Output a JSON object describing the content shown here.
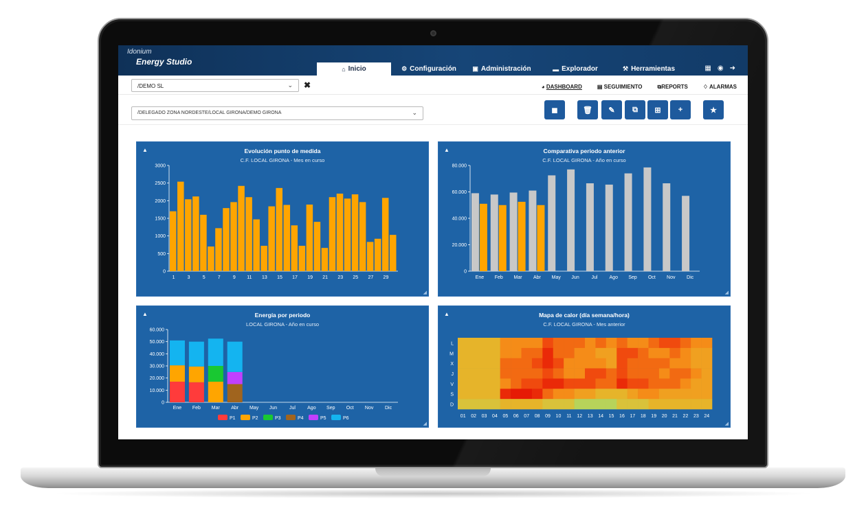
{
  "app": {
    "brand_small": "Idonium",
    "brand_main": "Energy Studio"
  },
  "nav": [
    {
      "label": "Inicio",
      "icon": "home-icon",
      "active": true
    },
    {
      "label": "Configuración",
      "icon": "gear-icon",
      "active": false
    },
    {
      "label": "Administración",
      "icon": "admin-icon",
      "active": false
    },
    {
      "label": "Explorador",
      "icon": "folder-icon",
      "active": false
    },
    {
      "label": "Herramientas",
      "icon": "wrench-icon",
      "active": false
    }
  ],
  "filters": {
    "client": "/DEMO SL",
    "location": "/DELEGADO ZONA NORDESTE/LOCAL GIRONA/DEMO GIRONA"
  },
  "subtabs": [
    {
      "label": "DASHBOARD",
      "icon": "dashboard-icon",
      "active": true
    },
    {
      "label": "SEGUIMIENTO",
      "icon": "area-chart-icon",
      "active": false
    },
    {
      "label": "REPORTS",
      "icon": "copy-icon",
      "active": false
    },
    {
      "label": "ALARMAS",
      "icon": "bell-icon",
      "active": false
    }
  ],
  "action_buttons": [
    "export-icon",
    "trash-icon",
    "edit-icon",
    "clone-icon",
    "add-box-icon",
    "plus-icon",
    "star-icon"
  ],
  "colors": {
    "panel_bg": "#1e63a6",
    "orange": "#ffa500",
    "gray": "#c8c8c8",
    "topbar": "#164577"
  },
  "chart_data": [
    {
      "type": "bar",
      "title": "Evolución punto de medida",
      "subtitle": "C.F. LOCAL GIRONA - Mes en curso",
      "x": [
        1,
        2,
        3,
        4,
        5,
        6,
        7,
        8,
        9,
        10,
        11,
        12,
        13,
        14,
        15,
        16,
        17,
        18,
        19,
        20,
        21,
        22,
        23,
        24,
        25,
        26,
        27,
        28,
        29,
        30
      ],
      "x_tick_labels": [
        "1",
        "3",
        "5",
        "7",
        "9",
        "11",
        "13",
        "15",
        "17",
        "19",
        "21",
        "23",
        "25",
        "27",
        "29"
      ],
      "values": [
        1700,
        2540,
        2040,
        2120,
        1600,
        700,
        1220,
        1790,
        1960,
        2420,
        2100,
        1470,
        720,
        1840,
        2360,
        1880,
        1300,
        720,
        1890,
        1400,
        660,
        2100,
        2200,
        2060,
        2180,
        1960,
        830,
        920,
        2080,
        1030
      ],
      "ylim": [
        0,
        3000
      ],
      "y_ticks": [
        "0",
        "500",
        "1000",
        "1500",
        "2000",
        "2500",
        "3000"
      ],
      "color": "#ffa500"
    },
    {
      "type": "bar",
      "title": "Comparativa periodo anterior",
      "subtitle": "C.F. LOCAL GIRONA - Año en curso",
      "categories": [
        "Ene",
        "Feb",
        "Mar",
        "Abr",
        "May",
        "Jun",
        "Jul",
        "Ago",
        "Sep",
        "Oct",
        "Nov",
        "Dic"
      ],
      "series": [
        {
          "values": [
            59000,
            58000,
            59500,
            61000,
            72500,
            77000,
            66500,
            65500,
            74000,
            78500,
            66500,
            57000
          ],
          "color": "#c8c8c8"
        },
        {
          "values": [
            51000,
            50000,
            52500,
            50000,
            null,
            null,
            null,
            null,
            null,
            null,
            null,
            null
          ],
          "color": "#ffa500"
        }
      ],
      "ylim": [
        0,
        80000
      ],
      "y_ticks": [
        "0",
        "20.000",
        "40.000",
        "60.000",
        "80.000"
      ]
    },
    {
      "type": "bar",
      "stacked": true,
      "title": "Energía por periodo",
      "subtitle": "LOCAL GIRONA - Año en curso",
      "categories": [
        "Ene",
        "Feb",
        "Mar",
        "Abr",
        "May",
        "Jun",
        "Jul",
        "Ago",
        "Sep",
        "Oct",
        "Nov",
        "Dic"
      ],
      "series": [
        {
          "name": "P1",
          "color": "#ff3b3b",
          "values": [
            17000,
            16500,
            0,
            0,
            null,
            null,
            null,
            null,
            null,
            null,
            null,
            null
          ]
        },
        {
          "name": "P2",
          "color": "#ffa500",
          "values": [
            13500,
            13000,
            17000,
            0,
            null,
            null,
            null,
            null,
            null,
            null,
            null,
            null
          ]
        },
        {
          "name": "P3",
          "color": "#19c832",
          "values": [
            0,
            0,
            13000,
            0,
            null,
            null,
            null,
            null,
            null,
            null,
            null,
            null
          ]
        },
        {
          "name": "P4",
          "color": "#a0641e",
          "values": [
            0,
            0,
            0,
            15000,
            null,
            null,
            null,
            null,
            null,
            null,
            null,
            null
          ]
        },
        {
          "name": "P5",
          "color": "#c040ff",
          "values": [
            0,
            0,
            0,
            10000,
            null,
            null,
            null,
            null,
            null,
            null,
            null,
            null
          ]
        },
        {
          "name": "P6",
          "color": "#14b4f0",
          "values": [
            20500,
            20500,
            22500,
            25000,
            null,
            null,
            null,
            null,
            null,
            null,
            null,
            null
          ]
        }
      ],
      "ylim": [
        0,
        60000
      ],
      "y_ticks": [
        "0",
        "10.000",
        "20.000",
        "30.000",
        "40.000",
        "50.000",
        "60.000"
      ],
      "legend": "bottom"
    },
    {
      "type": "heatmap",
      "title": "Mapa de calor (día semana/hora)",
      "subtitle": "C.F. LOCAL GIRONA - Mes anterior",
      "rows": [
        "L",
        "M",
        "X",
        "J",
        "V",
        "S",
        "D"
      ],
      "columns": [
        "01",
        "02",
        "03",
        "04",
        "05",
        "06",
        "07",
        "08",
        "09",
        "10",
        "11",
        "12",
        "13",
        "14",
        "15",
        "16",
        "17",
        "18",
        "19",
        "20",
        "21",
        "22",
        "23",
        "24"
      ],
      "values": [
        [
          3,
          3,
          3,
          3,
          5,
          5,
          5,
          5,
          7,
          6,
          6,
          6,
          5,
          6,
          5,
          6,
          5,
          5,
          6,
          7,
          7,
          6,
          5,
          5
        ],
        [
          3,
          3,
          3,
          3,
          5,
          5,
          6,
          6,
          8,
          6,
          6,
          5,
          5,
          4,
          4,
          7,
          7,
          6,
          5,
          5,
          6,
          5,
          4,
          4
        ],
        [
          3,
          3,
          3,
          3,
          6,
          6,
          6,
          7,
          8,
          7,
          5,
          5,
          5,
          5,
          4,
          7,
          6,
          6,
          6,
          6,
          5,
          5,
          4,
          4
        ],
        [
          3,
          3,
          3,
          3,
          6,
          6,
          6,
          6,
          7,
          6,
          5,
          5,
          7,
          7,
          6,
          7,
          6,
          6,
          6,
          5,
          6,
          6,
          5,
          4
        ],
        [
          3,
          3,
          3,
          3,
          5,
          6,
          7,
          7,
          8,
          8,
          7,
          7,
          7,
          6,
          6,
          8,
          7,
          7,
          6,
          6,
          6,
          5,
          4,
          4
        ],
        [
          3,
          3,
          3,
          3,
          8,
          9,
          9,
          8,
          6,
          5,
          5,
          4,
          4,
          3,
          3,
          3,
          4,
          5,
          5,
          4,
          4,
          4,
          4,
          4
        ],
        [
          2,
          2,
          2,
          2,
          3,
          3,
          3,
          3,
          2,
          2,
          2,
          1,
          1,
          1,
          1,
          2,
          2,
          2,
          3,
          3,
          3,
          3,
          3,
          3
        ]
      ],
      "scale": "yellow-to-red"
    }
  ]
}
